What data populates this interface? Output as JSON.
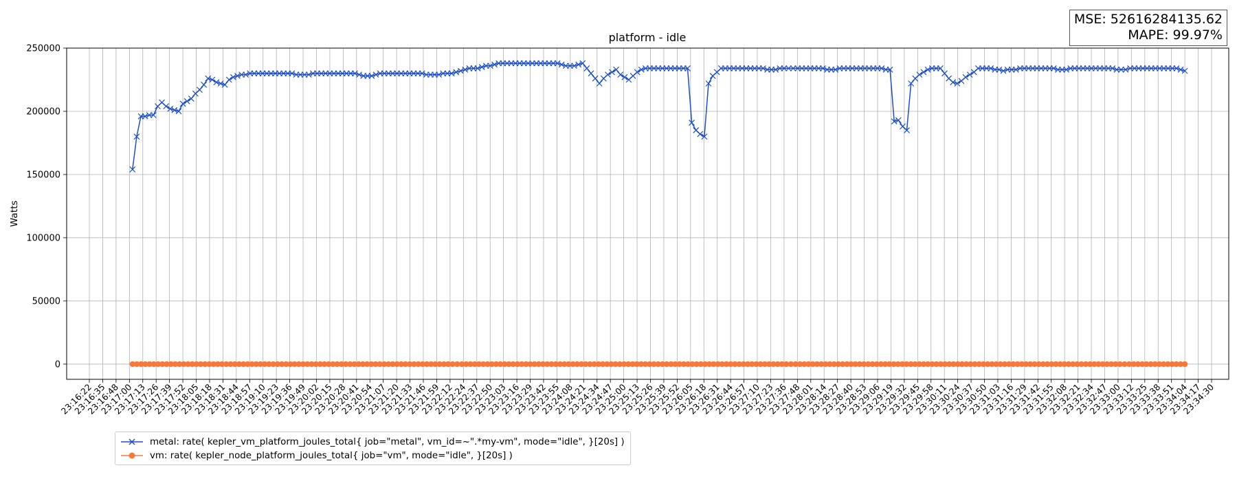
{
  "chart_data": {
    "type": "line",
    "title": "platform - idle",
    "xlabel": "",
    "ylabel": "Watts",
    "ylim": [
      -12000,
      250000
    ],
    "yticks": [
      0,
      50000,
      100000,
      150000,
      200000,
      250000
    ],
    "xtick_labels": [
      "23:16:22",
      "23:16:35",
      "23:16:48",
      "23:17:00",
      "23:17:13",
      "23:17:26",
      "23:17:39",
      "23:17:52",
      "23:18:05",
      "23:18:18",
      "23:18:31",
      "23:18:44",
      "23:18:57",
      "23:19:10",
      "23:19:23",
      "23:19:36",
      "23:19:49",
      "23:20:02",
      "23:20:15",
      "23:20:28",
      "23:20:41",
      "23:20:54",
      "23:21:07",
      "23:21:20",
      "23:21:33",
      "23:21:46",
      "23:21:59",
      "23:22:12",
      "23:22:24",
      "23:22:37",
      "23:22:50",
      "23:23:03",
      "23:23:16",
      "23:23:29",
      "23:23:42",
      "23:23:55",
      "23:24:08",
      "23:24:21",
      "23:24:34",
      "23:24:47",
      "23:25:00",
      "23:25:13",
      "23:25:26",
      "23:25:39",
      "23:25:52",
      "23:26:05",
      "23:26:18",
      "23:26:31",
      "23:26:44",
      "23:26:57",
      "23:27:10",
      "23:27:23",
      "23:27:36",
      "23:27:48",
      "23:28:01",
      "23:28:14",
      "23:28:27",
      "23:28:40",
      "23:28:53",
      "23:29:06",
      "23:29:19",
      "23:29:32",
      "23:29:45",
      "23:29:58",
      "23:30:11",
      "23:30:24",
      "23:30:37",
      "23:30:50",
      "23:31:03",
      "23:31:16",
      "23:31:29",
      "23:31:42",
      "23:31:55",
      "23:32:08",
      "23:32:21",
      "23:32:34",
      "23:32:47",
      "23:33:00",
      "23:33:12",
      "23:33:25",
      "23:33:38",
      "23:33:51",
      "23:34:04",
      "23:34:17",
      "23:34:30"
    ],
    "grid": true,
    "legend_placement": "below-left",
    "series": [
      {
        "name": "metal: rate( kepler_vm_platform_joules_total{ job=\"metal\", vm_id=~\".*my-vm\", mode=\"idle\", }[20s] )",
        "color": "#1f4fbf",
        "marker": "x",
        "x_start": "23:17:03",
        "x_end": "23:34:04",
        "values": [
          154000,
          180000,
          196000,
          196000,
          197000,
          197000,
          204000,
          207000,
          204000,
          202000,
          201000,
          200000,
          206000,
          208000,
          210000,
          214000,
          217000,
          221000,
          226000,
          225000,
          223000,
          222000,
          221000,
          225000,
          227000,
          228000,
          229000,
          229000,
          230000,
          230000,
          230000,
          230000,
          230000,
          230000,
          230000,
          230000,
          230000,
          230000,
          230000,
          229000,
          229000,
          229000,
          229000,
          230000,
          230000,
          230000,
          230000,
          230000,
          230000,
          230000,
          230000,
          230000,
          230000,
          230000,
          229000,
          228000,
          228000,
          228000,
          229000,
          230000,
          230000,
          230000,
          230000,
          230000,
          230000,
          230000,
          230000,
          230000,
          230000,
          230000,
          229000,
          229000,
          229000,
          229000,
          230000,
          230000,
          230000,
          231000,
          232000,
          233000,
          234000,
          234000,
          234000,
          235000,
          236000,
          236000,
          237000,
          238000,
          238000,
          238000,
          238000,
          238000,
          238000,
          238000,
          238000,
          238000,
          238000,
          238000,
          238000,
          238000,
          238000,
          238000,
          237000,
          236000,
          236000,
          236000,
          237000,
          238000,
          234000,
          230000,
          226000,
          222000,
          226000,
          229000,
          231000,
          233000,
          229000,
          227000,
          225000,
          228000,
          231000,
          233000,
          234000,
          234000,
          234000,
          234000,
          234000,
          234000,
          234000,
          234000,
          234000,
          234000,
          234000,
          191000,
          185000,
          182000,
          180000,
          222000,
          228000,
          231000,
          234000,
          234000,
          234000,
          234000,
          234000,
          234000,
          234000,
          234000,
          234000,
          234000,
          234000,
          233000,
          233000,
          233000,
          234000,
          234000,
          234000,
          234000,
          234000,
          234000,
          234000,
          234000,
          234000,
          234000,
          234000,
          233000,
          233000,
          233000,
          234000,
          234000,
          234000,
          234000,
          234000,
          234000,
          234000,
          234000,
          234000,
          234000,
          234000,
          233000,
          233000,
          192000,
          193000,
          188000,
          185000,
          222000,
          226000,
          229000,
          231000,
          233000,
          234000,
          234000,
          234000,
          230000,
          226000,
          223000,
          222000,
          224000,
          227000,
          229000,
          231000,
          234000,
          234000,
          234000,
          234000,
          233000,
          233000,
          232000,
          233000,
          233000,
          233000,
          234000,
          234000,
          234000,
          234000,
          234000,
          234000,
          234000,
          234000,
          234000,
          233000,
          233000,
          233000,
          234000,
          234000,
          234000,
          234000,
          234000,
          234000,
          234000,
          234000,
          234000,
          234000,
          234000,
          233000,
          233000,
          233000,
          234000,
          234000,
          234000,
          234000,
          234000,
          234000,
          234000,
          234000,
          234000,
          234000,
          234000,
          234000,
          233000,
          232000
        ]
      },
      {
        "name": "vm: rate( kepler_node_platform_joules_total{ job=\"vm\", mode=\"idle\", }[20s] )",
        "color": "#f5793a",
        "marker": "o",
        "x_start": "23:17:03",
        "x_end": "23:34:04",
        "constant_value": 0,
        "n_points": 247
      }
    ],
    "annotations": {
      "mse": "MSE: 52616284135.62",
      "mape": "MAPE: 99.97%"
    }
  }
}
